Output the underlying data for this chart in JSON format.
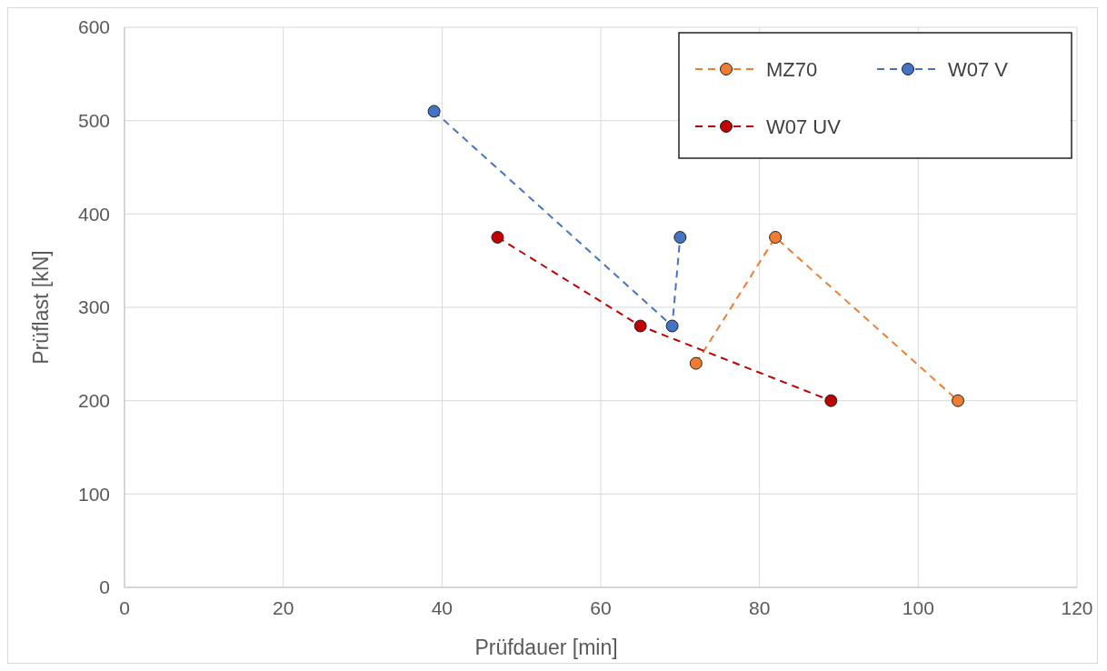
{
  "chart_data": {
    "type": "line",
    "xlabel": "Prüfdauer [min]",
    "ylabel": "Prüflast [kN]",
    "xlim": [
      0,
      120
    ],
    "xticks": [
      0,
      20,
      40,
      60,
      80,
      100,
      120
    ],
    "ylim": [
      0,
      600
    ],
    "yticks": [
      0,
      100,
      200,
      300,
      400,
      500,
      600
    ],
    "grid": true,
    "legend": "top right",
    "marker": "circle",
    "line_style": "dashed",
    "series": [
      {
        "name": "MZ70",
        "color": "#ed7d31",
        "x": [
          72,
          82,
          105
        ],
        "values": [
          240,
          375,
          200
        ]
      },
      {
        "name": "W07 V",
        "color": "#4472c4",
        "x": [
          39,
          69,
          70
        ],
        "values": [
          510,
          280,
          375
        ]
      },
      {
        "name": "W07 UV",
        "color": "#c00000",
        "x": [
          47,
          65,
          89
        ],
        "values": [
          375,
          280,
          200
        ]
      }
    ]
  }
}
